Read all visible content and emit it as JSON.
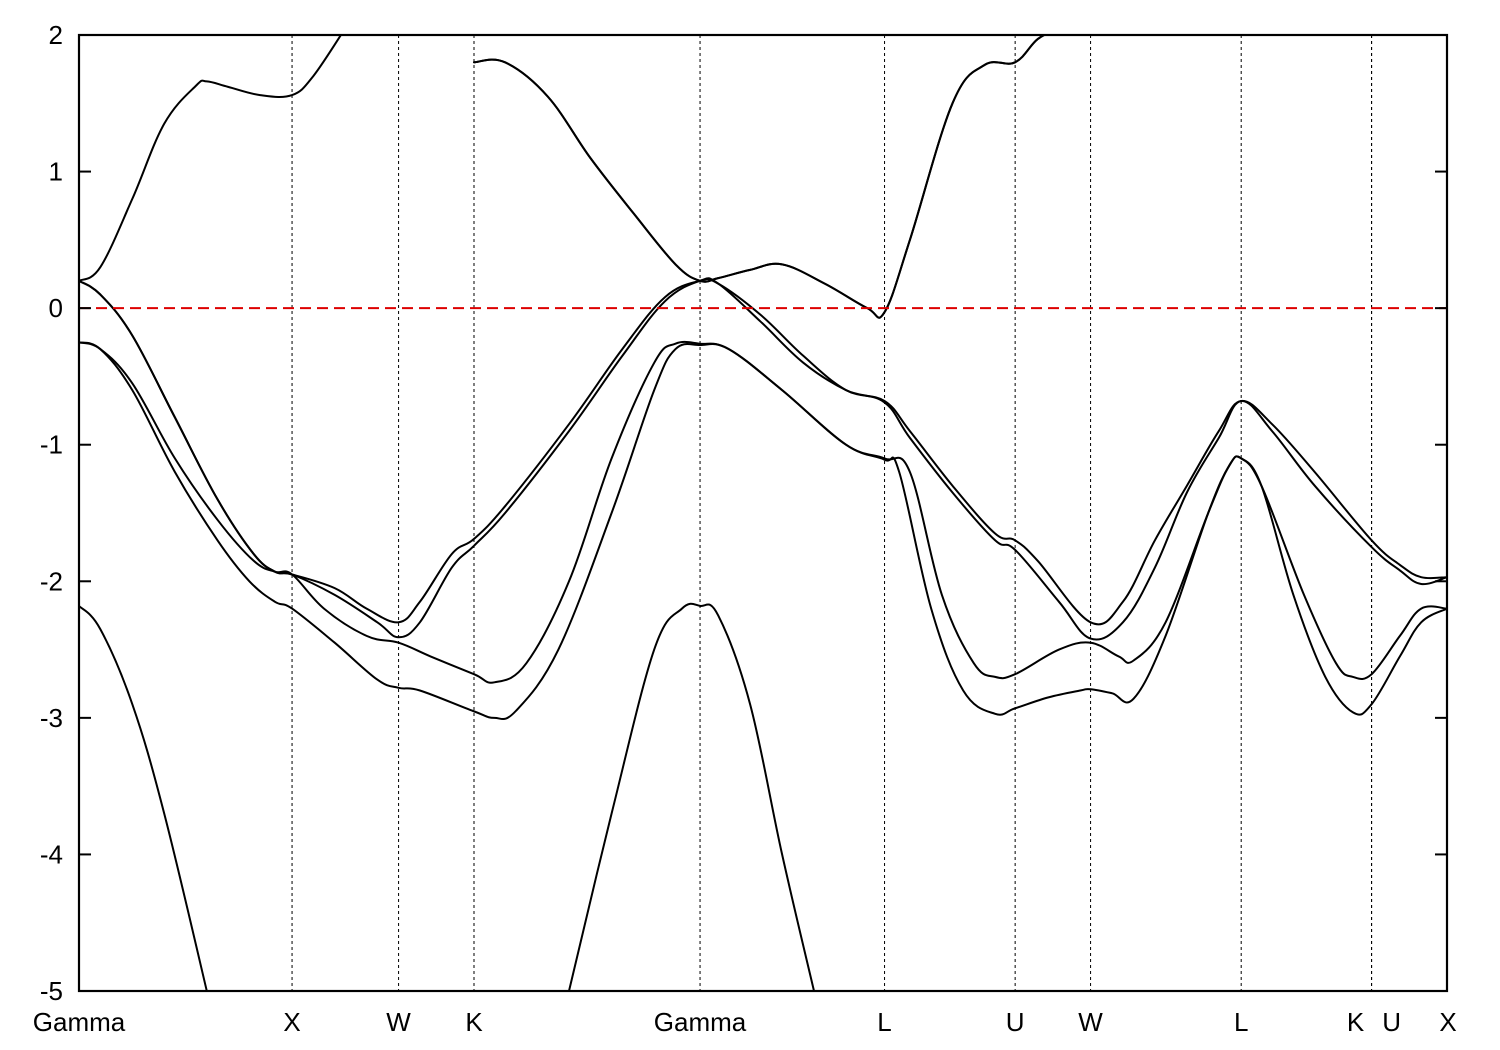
{
  "chart_data": {
    "type": "line",
    "title": "",
    "xlabel": "",
    "ylabel": "",
    "ylim": [
      -5,
      2
    ],
    "yticks": [
      2,
      1,
      0,
      -1,
      -2,
      -3,
      -4,
      -5
    ],
    "kpoints": [
      {
        "label": "Gamma",
        "x": 0.0
      },
      {
        "label": "X",
        "x": 1.0
      },
      {
        "label": "W",
        "x": 1.5
      },
      {
        "label": "K",
        "x": 1.854
      },
      {
        "label": "Gamma",
        "x": 2.915
      },
      {
        "label": "L",
        "x": 3.781
      },
      {
        "label": "U",
        "x": 4.394
      },
      {
        "label": "W",
        "x": 4.748
      },
      {
        "label": "L",
        "x": 5.455
      },
      {
        "label": "K",
        "x": 6.067
      },
      {
        "label": "U",
        "x": 6.067
      },
      {
        "label": "X",
        "x": 6.421
      }
    ],
    "xlim": [
      0,
      6.421
    ],
    "fermi_level": {
      "value": 0,
      "color": "#dd0000"
    },
    "series": [
      {
        "values": [
          [
            0,
            -2.18
          ],
          [
            0.1,
            -2.35
          ],
          [
            0.25,
            -2.9
          ],
          [
            0.4,
            -3.7
          ],
          [
            0.6,
            -5.0
          ]
        ]
      },
      {
        "values": [
          [
            2.3,
            -5.0
          ],
          [
            2.5,
            -3.7
          ],
          [
            2.7,
            -2.5
          ],
          [
            2.83,
            -2.2
          ],
          [
            2.915,
            -2.18
          ],
          [
            3.0,
            -2.25
          ],
          [
            3.15,
            -2.9
          ],
          [
            3.3,
            -4.0
          ],
          [
            3.45,
            -5.0
          ]
        ]
      },
      {
        "values": [
          [
            0,
            -0.25
          ],
          [
            0.1,
            -0.3
          ],
          [
            0.25,
            -0.6
          ],
          [
            0.45,
            -1.2
          ],
          [
            0.65,
            -1.7
          ],
          [
            0.8,
            -2.0
          ],
          [
            0.92,
            -2.15
          ],
          [
            1.0,
            -2.2
          ],
          [
            1.2,
            -2.45
          ],
          [
            1.4,
            -2.72
          ],
          [
            1.5,
            -2.78
          ],
          [
            1.6,
            -2.8
          ],
          [
            1.85,
            -2.95
          ],
          [
            1.95,
            -3.0
          ],
          [
            2.05,
            -2.95
          ],
          [
            2.25,
            -2.5
          ],
          [
            2.5,
            -1.5
          ],
          [
            2.7,
            -0.6
          ],
          [
            2.8,
            -0.3
          ],
          [
            2.915,
            -0.27
          ],
          [
            3.05,
            -0.3
          ],
          [
            3.3,
            -0.6
          ],
          [
            3.6,
            -1.0
          ],
          [
            3.781,
            -1.11
          ],
          [
            3.85,
            -1.2
          ],
          [
            4.0,
            -2.2
          ],
          [
            4.15,
            -2.8
          ],
          [
            4.3,
            -2.97
          ],
          [
            4.394,
            -2.93
          ],
          [
            4.55,
            -2.85
          ],
          [
            4.7,
            -2.8
          ],
          [
            4.748,
            -2.79
          ],
          [
            4.85,
            -2.82
          ],
          [
            4.95,
            -2.86
          ],
          [
            5.1,
            -2.4
          ],
          [
            5.3,
            -1.5
          ],
          [
            5.4,
            -1.15
          ],
          [
            5.455,
            -1.1
          ],
          [
            5.55,
            -1.3
          ],
          [
            5.7,
            -2.1
          ],
          [
            5.85,
            -2.7
          ],
          [
            5.98,
            -2.96
          ],
          [
            6.067,
            -2.9
          ],
          [
            6.2,
            -2.55
          ],
          [
            6.3,
            -2.3
          ],
          [
            6.421,
            -2.2
          ]
        ]
      },
      {
        "values": [
          [
            0,
            -0.25
          ],
          [
            0.1,
            -0.3
          ],
          [
            0.25,
            -0.55
          ],
          [
            0.45,
            -1.1
          ],
          [
            0.65,
            -1.55
          ],
          [
            0.82,
            -1.85
          ],
          [
            0.92,
            -1.93
          ],
          [
            1.0,
            -1.95
          ],
          [
            1.15,
            -2.2
          ],
          [
            1.35,
            -2.4
          ],
          [
            1.5,
            -2.45
          ],
          [
            1.65,
            -2.55
          ],
          [
            1.854,
            -2.68
          ],
          [
            1.95,
            -2.74
          ],
          [
            2.1,
            -2.6
          ],
          [
            2.3,
            -2.0
          ],
          [
            2.5,
            -1.1
          ],
          [
            2.7,
            -0.4
          ],
          [
            2.8,
            -0.26
          ],
          [
            2.915,
            -0.26
          ],
          [
            3.05,
            -0.3
          ],
          [
            3.3,
            -0.6
          ],
          [
            3.6,
            -1.0
          ],
          [
            3.781,
            -1.1
          ],
          [
            3.9,
            -1.2
          ],
          [
            4.05,
            -2.1
          ],
          [
            4.2,
            -2.6
          ],
          [
            4.3,
            -2.7
          ],
          [
            4.394,
            -2.68
          ],
          [
            4.6,
            -2.5
          ],
          [
            4.748,
            -2.45
          ],
          [
            4.88,
            -2.55
          ],
          [
            4.95,
            -2.58
          ],
          [
            5.1,
            -2.3
          ],
          [
            5.3,
            -1.5
          ],
          [
            5.4,
            -1.15
          ],
          [
            5.455,
            -1.1
          ],
          [
            5.55,
            -1.3
          ],
          [
            5.75,
            -2.1
          ],
          [
            5.9,
            -2.6
          ],
          [
            5.98,
            -2.7
          ],
          [
            6.067,
            -2.68
          ],
          [
            6.2,
            -2.4
          ],
          [
            6.3,
            -2.2
          ],
          [
            6.421,
            -2.2
          ]
        ]
      },
      {
        "values": [
          [
            0,
            0.2
          ],
          [
            0.1,
            0.1
          ],
          [
            0.25,
            -0.2
          ],
          [
            0.45,
            -0.8
          ],
          [
            0.65,
            -1.4
          ],
          [
            0.82,
            -1.8
          ],
          [
            0.92,
            -1.93
          ],
          [
            1.0,
            -1.95
          ],
          [
            1.2,
            -2.1
          ],
          [
            1.4,
            -2.3
          ],
          [
            1.5,
            -2.41
          ],
          [
            1.6,
            -2.3
          ],
          [
            1.75,
            -1.9
          ],
          [
            1.854,
            -1.74
          ],
          [
            2.0,
            -1.5
          ],
          [
            2.3,
            -0.9
          ],
          [
            2.55,
            -0.35
          ],
          [
            2.75,
            0.05
          ],
          [
            2.915,
            0.2
          ],
          [
            3.0,
            0.18
          ],
          [
            3.2,
            -0.1
          ],
          [
            3.4,
            -0.4
          ],
          [
            3.6,
            -0.6
          ],
          [
            3.781,
            -0.69
          ],
          [
            3.9,
            -0.95
          ],
          [
            4.1,
            -1.35
          ],
          [
            4.3,
            -1.7
          ],
          [
            4.394,
            -1.77
          ],
          [
            4.6,
            -2.15
          ],
          [
            4.748,
            -2.42
          ],
          [
            4.9,
            -2.3
          ],
          [
            5.05,
            -1.9
          ],
          [
            5.2,
            -1.35
          ],
          [
            5.35,
            -0.95
          ],
          [
            5.455,
            -0.68
          ],
          [
            5.6,
            -0.9
          ],
          [
            5.8,
            -1.3
          ],
          [
            6.067,
            -1.75
          ],
          [
            6.2,
            -1.92
          ],
          [
            6.3,
            -2.02
          ],
          [
            6.421,
            -1.97
          ]
        ]
      },
      {
        "values": [
          [
            0,
            0.2
          ],
          [
            0.1,
            0.1
          ],
          [
            0.25,
            -0.2
          ],
          [
            0.45,
            -0.8
          ],
          [
            0.65,
            -1.4
          ],
          [
            0.82,
            -1.8
          ],
          [
            0.92,
            -1.93
          ],
          [
            1.0,
            -1.95
          ],
          [
            1.2,
            -2.05
          ],
          [
            1.35,
            -2.2
          ],
          [
            1.5,
            -2.3
          ],
          [
            1.6,
            -2.15
          ],
          [
            1.75,
            -1.8
          ],
          [
            1.854,
            -1.69
          ],
          [
            2.0,
            -1.45
          ],
          [
            2.3,
            -0.85
          ],
          [
            2.55,
            -0.3
          ],
          [
            2.75,
            0.08
          ],
          [
            2.915,
            0.2
          ],
          [
            3.0,
            0.18
          ],
          [
            3.2,
            -0.05
          ],
          [
            3.4,
            -0.35
          ],
          [
            3.6,
            -0.6
          ],
          [
            3.781,
            -0.68
          ],
          [
            3.9,
            -0.9
          ],
          [
            4.1,
            -1.3
          ],
          [
            4.3,
            -1.65
          ],
          [
            4.394,
            -1.7
          ],
          [
            4.5,
            -1.85
          ],
          [
            4.748,
            -2.3
          ],
          [
            4.9,
            -2.15
          ],
          [
            5.05,
            -1.7
          ],
          [
            5.2,
            -1.3
          ],
          [
            5.35,
            -0.9
          ],
          [
            5.455,
            -0.68
          ],
          [
            5.6,
            -0.85
          ],
          [
            5.8,
            -1.2
          ],
          [
            6.067,
            -1.7
          ],
          [
            6.2,
            -1.88
          ],
          [
            6.3,
            -1.97
          ],
          [
            6.421,
            -1.97
          ]
        ]
      },
      {
        "values": [
          [
            0,
            0.2
          ],
          [
            0.1,
            0.3
          ],
          [
            0.25,
            0.8
          ],
          [
            0.4,
            1.35
          ],
          [
            0.55,
            1.63
          ],
          [
            0.6,
            1.66
          ],
          [
            0.7,
            1.62
          ],
          [
            0.85,
            1.56
          ],
          [
            1.0,
            1.56
          ],
          [
            1.1,
            1.7
          ],
          [
            1.25,
            2.05
          ]
        ]
      },
      {
        "values": [
          [
            1.854,
            1.8
          ],
          [
            2.0,
            1.8
          ],
          [
            2.2,
            1.55
          ],
          [
            2.4,
            1.1
          ],
          [
            2.6,
            0.7
          ],
          [
            2.8,
            0.32
          ],
          [
            2.915,
            0.2
          ],
          [
            3.0,
            0.22
          ],
          [
            3.15,
            0.28
          ],
          [
            3.3,
            0.32
          ],
          [
            3.5,
            0.18
          ],
          [
            3.7,
            0.0
          ],
          [
            3.781,
            -0.03
          ],
          [
            3.9,
            0.5
          ],
          [
            4.1,
            1.5
          ],
          [
            4.25,
            1.78
          ],
          [
            4.394,
            1.8
          ],
          [
            4.5,
            1.97
          ],
          [
            4.6,
            2.05
          ]
        ]
      },
      {
        "values": [
          [
            1.854,
            1.8
          ],
          [
            2.0,
            1.8
          ],
          [
            2.2,
            1.55
          ],
          [
            2.4,
            1.1
          ],
          [
            2.6,
            0.7
          ],
          [
            2.8,
            0.32
          ],
          [
            2.915,
            0.2
          ],
          [
            3.0,
            0.22
          ],
          [
            3.15,
            0.28
          ],
          [
            3.3,
            0.32
          ],
          [
            3.5,
            0.18
          ],
          [
            3.7,
            0.0
          ],
          [
            3.781,
            -0.03
          ],
          [
            3.9,
            0.5
          ],
          [
            4.1,
            1.5
          ],
          [
            4.25,
            1.78
          ],
          [
            4.394,
            1.8
          ],
          [
            4.5,
            1.97
          ],
          [
            4.6,
            2.05
          ]
        ]
      }
    ]
  }
}
